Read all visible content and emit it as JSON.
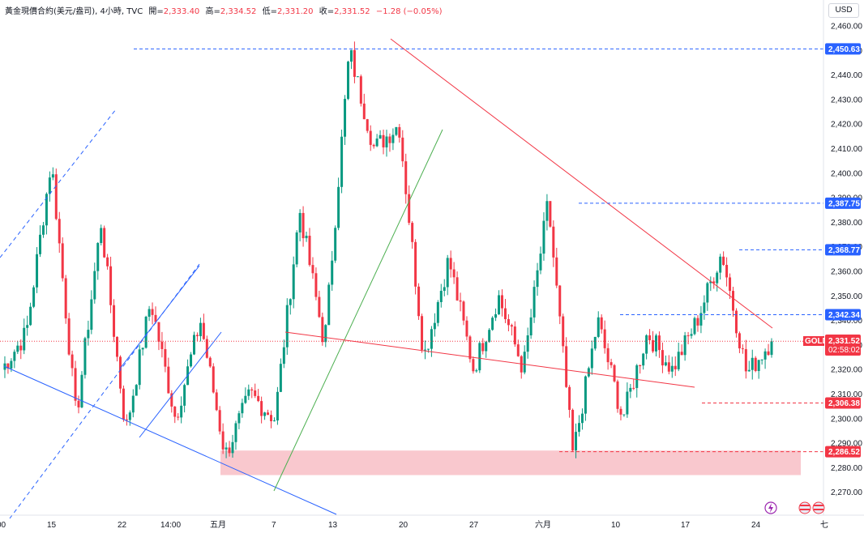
{
  "legend": {
    "symbol": "黃金現價合約(美元/盎司), 4小時, TVC",
    "open_label": "開=",
    "open": "2,333.40",
    "high_label": "高=",
    "high": "2,334.52",
    "low_label": "低=",
    "low": "2,331.20",
    "close_label": "收=",
    "close": "2,331.52",
    "change": "−1.28 (−0.05%)"
  },
  "currency": "USD",
  "colors": {
    "up": "#089981",
    "down": "#f23645",
    "blue_line": "#2962ff",
    "red_line": "#f23645",
    "green_line": "#4caf50",
    "zone": "#f7b6bd"
  },
  "price_axis": {
    "ticks": [
      "2,460.00",
      "2,450.00",
      "2,440.00",
      "2,430.00",
      "2,420.00",
      "2,410.00",
      "2,400.00",
      "2,390.00",
      "2,380.00",
      "2,370.00",
      "2,360.00",
      "2,350.00",
      "2,340.00",
      "2,330.00",
      "2,320.00",
      "2,310.00",
      "2,300.00",
      "2,290.00",
      "2,280.00",
      "2,270.00"
    ]
  },
  "price_labels": [
    {
      "text": "2,450.63",
      "kind": "blue"
    },
    {
      "text": "2,387.75",
      "kind": "blue"
    },
    {
      "text": "2,368.77",
      "kind": "blue"
    },
    {
      "text": "2,342.34",
      "kind": "blue"
    },
    {
      "text": "2,306.38",
      "kind": "red"
    },
    {
      "text": "2,286.52",
      "kind": "red"
    }
  ],
  "last_price": {
    "symbol": "GOLD",
    "price": "2,331.52",
    "countdown": "02:58:02"
  },
  "time_axis": {
    "ticks": [
      "00",
      "15",
      "22",
      "14:00",
      "五月",
      "7",
      "13",
      "20",
      "27",
      "六月",
      "10",
      "17",
      "24",
      "七"
    ]
  },
  "chart_data": {
    "type": "candlestick",
    "title": "",
    "y_range": [
      2265,
      2465
    ],
    "horizontal_levels": [
      2450.63,
      2387.75,
      2368.77,
      2342.34,
      2306.38,
      2286.52
    ],
    "support_zone": [
      2277,
      2287
    ],
    "current_price": 2331.52,
    "swing_points": [
      2320,
      2335,
      2405,
      2300,
      2380,
      2295,
      2348,
      2300,
      2340,
      2285,
      2310,
      2300,
      2385,
      2330,
      2450,
      2410,
      2420,
      2325,
      2365,
      2320,
      2350,
      2320,
      2388,
      2285,
      2340,
      2300,
      2335,
      2320,
      2340,
      2368,
      2318,
      2332
    ]
  }
}
